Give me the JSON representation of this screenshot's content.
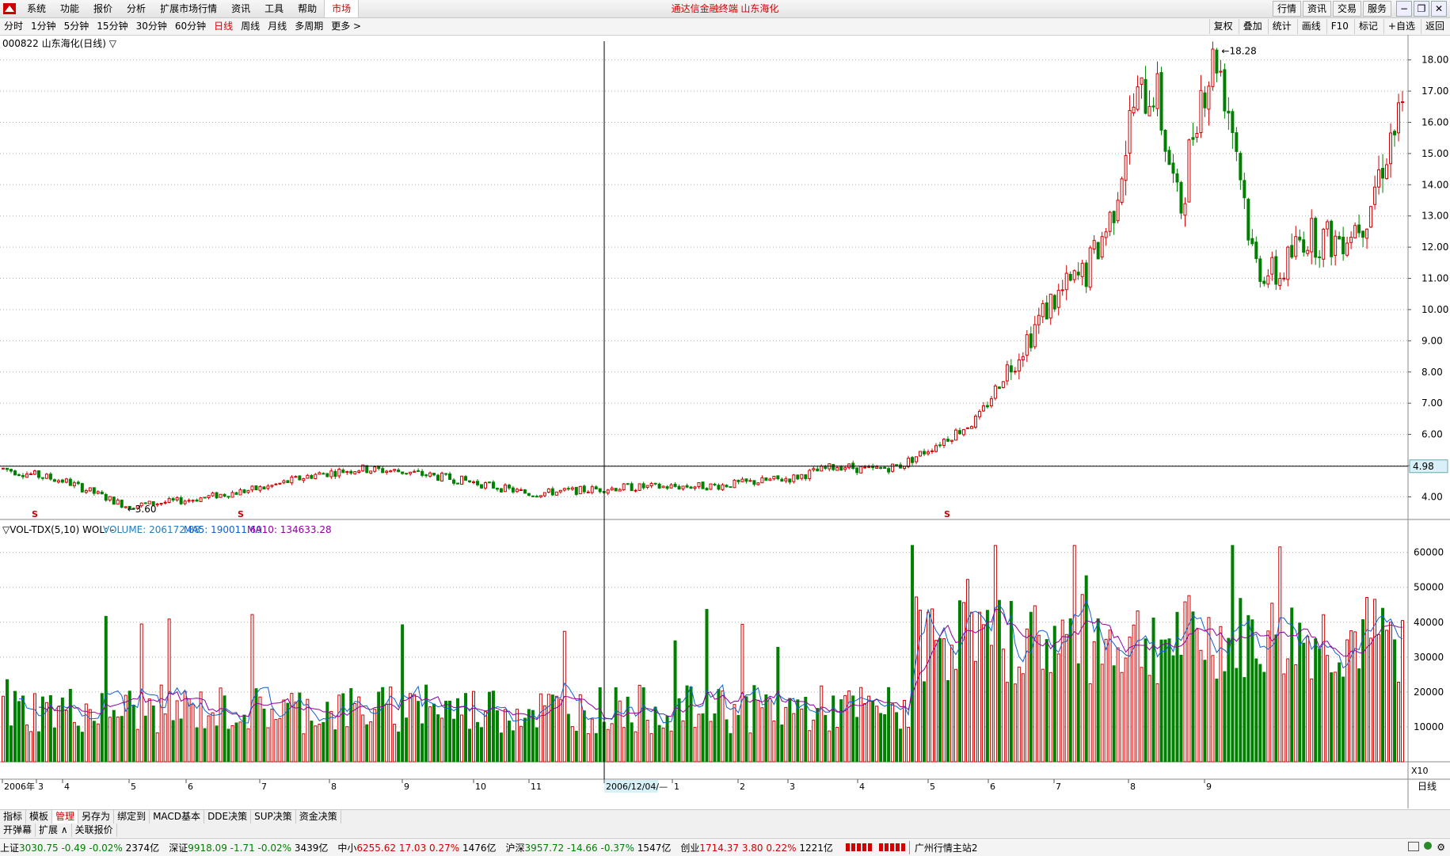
{
  "menu": {
    "items": [
      "系统",
      "功能",
      "报价",
      "分析",
      "扩展市场行情",
      "资讯",
      "工具",
      "帮助"
    ],
    "market_tab": "市场",
    "center_title": "通达信金融终端  山东海化",
    "right_buttons": [
      "行情",
      "资讯",
      "交易",
      "服务"
    ],
    "window_buttons": [
      "−",
      "❐",
      "✕"
    ]
  },
  "periods": {
    "items": [
      "分时",
      "1分钟",
      "5分钟",
      "15分钟",
      "30分钟",
      "60分钟",
      "日线",
      "周线",
      "月线",
      "多周期",
      "更多 >"
    ],
    "active": "日线",
    "right_items": [
      "复权",
      "叠加",
      "统计",
      "画线",
      "F10",
      "标记",
      "+自选",
      "返回"
    ]
  },
  "chart_header": {
    "title": "000822 山东海化(日线) ▽"
  },
  "crosshair": {
    "price_label": "4.98",
    "date_label": "2006/12/04/—"
  },
  "volume_header": {
    "indicator": "▽VOL-TDX(5,10) WOL: -",
    "volume": "VOLUME: 206172.88",
    "ma5": "MA5: 190011.69",
    "ma10": "MA10: 134633.28"
  },
  "colors": {
    "up": "#d00000",
    "down": "#008000",
    "ma5": "#1060d0",
    "ma10": "#9000a0",
    "grid": "#b0b0b0"
  },
  "chart_data": {
    "type": "candlestick",
    "price_axis": {
      "ticks": [
        "18.00",
        "17.00",
        "16.00",
        "15.00",
        "14.00",
        "13.00",
        "12.00",
        "11.00",
        "10.00",
        "9.00",
        "8.00",
        "7.00",
        "6.00",
        "5.00",
        "4.00"
      ],
      "min": 3.3,
      "max": 18.6
    },
    "volume_axis": {
      "ticks": [
        "60000",
        "50000",
        "40000",
        "30000",
        "20000",
        "10000"
      ],
      "unit": "X10",
      "max": 64000
    },
    "x_labels": [
      "2006年",
      "3",
      "4",
      "5",
      "6",
      "7",
      "8",
      "9",
      "10",
      "11",
      "2006/12/04/—",
      "1",
      "2",
      "3",
      "4",
      "5",
      "6",
      "7",
      "8",
      "9"
    ],
    "annotations": {
      "high": "18.28",
      "low": "3.60"
    },
    "period_label": "日线",
    "volume_ma": [
      "MA5",
      "MA10"
    ]
  },
  "bottom_tabs": {
    "items": [
      "指标",
      "模板",
      "管理",
      "另存为",
      "绑定到",
      "MACD基本",
      "DDE决策",
      "SUP决策",
      "资金决策"
    ],
    "active": "管理"
  },
  "sub_tabs": {
    "items": [
      "开弹幕",
      "扩展 ∧",
      "关联报价"
    ]
  },
  "status": {
    "indices": [
      {
        "name": "上证",
        "value": "3030.75",
        "chg": "-0.49",
        "pct": "-0.02%",
        "amt": "2374亿",
        "dir": "dn"
      },
      {
        "name": "深证",
        "value": "9918.09",
        "chg": "-1.71",
        "pct": "-0.02%",
        "amt": "3439亿",
        "dir": "dn"
      },
      {
        "name": "中小",
        "value": "6255.62",
        "chg": "17.03",
        "pct": "0.27%",
        "amt": "1476亿",
        "dir": "up"
      },
      {
        "name": "沪深",
        "value": "3957.72",
        "chg": "-14.66",
        "pct": "-0.37%",
        "amt": "1547亿",
        "dir": "dn"
      },
      {
        "name": "创业",
        "value": "1714.37",
        "chg": "3.80",
        "pct": "0.22%",
        "amt": "1221亿",
        "dir": "up"
      }
    ],
    "server": "广州行情主站2"
  }
}
